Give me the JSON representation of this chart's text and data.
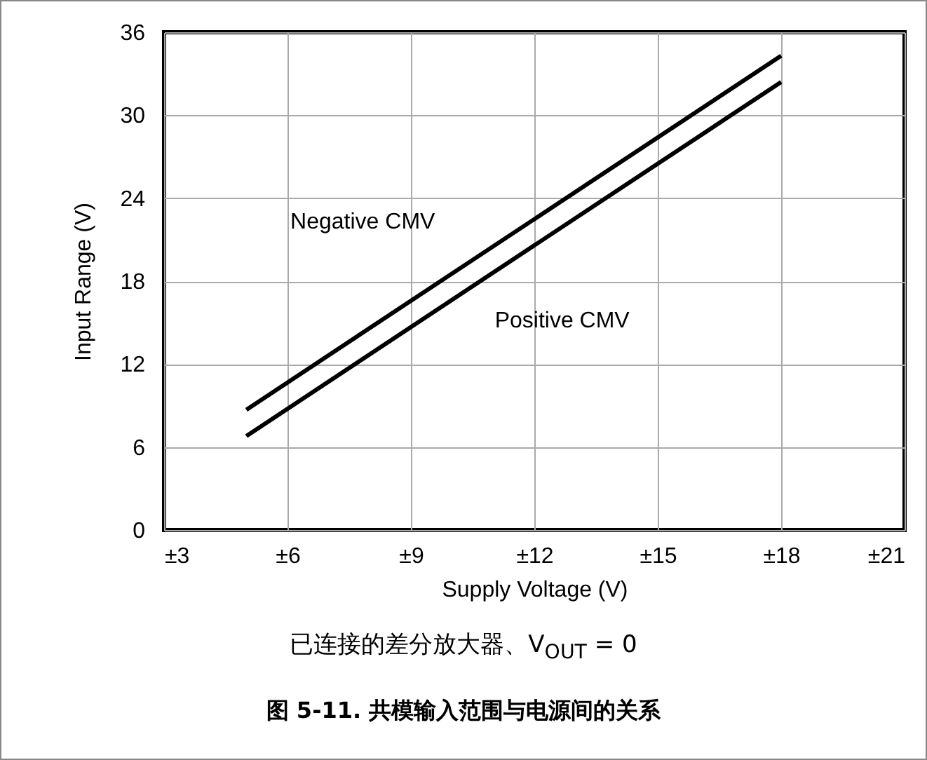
{
  "chart_data": {
    "type": "line",
    "title": "图 5-11. 共模输入范围与电源间的关系",
    "subtitle": "已连接的差分放大器、V$_{OUT}$ = 0",
    "xlabel": "Supply Voltage (V)",
    "ylabel": "Input Range (V)",
    "x": [
      5,
      18
    ],
    "series": [
      {
        "name": "Negative CMV",
        "color": "#000000",
        "values": [
          8.7,
          34.3
        ]
      },
      {
        "name": "Positive CMV",
        "color": "#000000",
        "values": [
          6.8,
          32.4
        ]
      }
    ],
    "xlim": [
      3,
      21
    ],
    "xticks": [
      {
        "value": 3,
        "label": "±3"
      },
      {
        "value": 6,
        "label": "±6"
      },
      {
        "value": 9,
        "label": "±9"
      },
      {
        "value": 12,
        "label": "±12"
      },
      {
        "value": 15,
        "label": "±15"
      },
      {
        "value": 18,
        "label": "±18"
      },
      {
        "value": 21,
        "label": "±21"
      }
    ],
    "ylim": [
      0,
      36
    ],
    "yticks": [
      0,
      6,
      12,
      18,
      24,
      30,
      36
    ],
    "grid": true,
    "legend": false,
    "marker": "none",
    "line_style": "solid"
  }
}
